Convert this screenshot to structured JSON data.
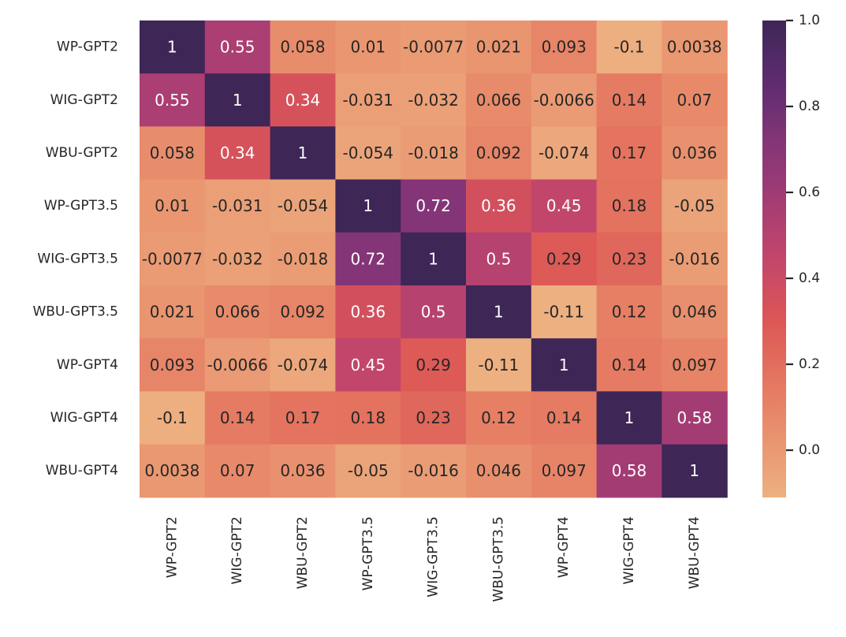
{
  "chart_data": {
    "type": "heatmap",
    "title": "",
    "row_labels": [
      "WP-GPT2",
      "WIG-GPT2",
      "WBU-GPT2",
      "WP-GPT3.5",
      "WIG-GPT3.5",
      "WBU-GPT3.5",
      "WP-GPT4",
      "WIG-GPT4",
      "WBU-GPT4"
    ],
    "col_labels": [
      "WP-GPT2",
      "WIG-GPT2",
      "WBU-GPT2",
      "WP-GPT3.5",
      "WIG-GPT3.5",
      "WBU-GPT3.5",
      "WP-GPT4",
      "WIG-GPT4",
      "WBU-GPT4"
    ],
    "values": [
      [
        1,
        0.55,
        0.058,
        0.01,
        -0.0077,
        0.021,
        0.093,
        -0.1,
        0.0038
      ],
      [
        0.55,
        1,
        0.34,
        -0.031,
        -0.032,
        0.066,
        -0.0066,
        0.14,
        0.07
      ],
      [
        0.058,
        0.34,
        1,
        -0.054,
        -0.018,
        0.092,
        -0.074,
        0.17,
        0.036
      ],
      [
        0.01,
        -0.031,
        -0.054,
        1,
        0.72,
        0.36,
        0.45,
        0.18,
        -0.05
      ],
      [
        -0.0077,
        -0.032,
        -0.018,
        0.72,
        1,
        0.5,
        0.29,
        0.23,
        -0.016
      ],
      [
        0.021,
        0.066,
        0.092,
        0.36,
        0.5,
        1,
        -0.11,
        0.12,
        0.046
      ],
      [
        0.093,
        -0.0066,
        -0.074,
        0.45,
        0.29,
        -0.11,
        1,
        0.14,
        0.097
      ],
      [
        -0.1,
        0.14,
        0.17,
        0.18,
        0.23,
        0.12,
        0.14,
        1,
        0.58
      ],
      [
        0.0038,
        0.07,
        0.036,
        -0.05,
        -0.016,
        0.046,
        0.097,
        0.58,
        1
      ]
    ],
    "labels": [
      [
        "1",
        "0.55",
        "0.058",
        "0.01",
        "-0.0077",
        "0.021",
        "0.093",
        "-0.1",
        "0.0038"
      ],
      [
        "0.55",
        "1",
        "0.34",
        "-0.031",
        "-0.032",
        "0.066",
        "-0.0066",
        "0.14",
        "0.07"
      ],
      [
        "0.058",
        "0.34",
        "1",
        "-0.054",
        "-0.018",
        "0.092",
        "-0.074",
        "0.17",
        "0.036"
      ],
      [
        "0.01",
        "-0.031",
        "-0.054",
        "1",
        "0.72",
        "0.36",
        "0.45",
        "0.18",
        "-0.05"
      ],
      [
        "-0.0077",
        "-0.032",
        "-0.018",
        "0.72",
        "1",
        "0.5",
        "0.29",
        "0.23",
        "-0.016"
      ],
      [
        "0.021",
        "0.066",
        "0.092",
        "0.36",
        "0.5",
        "1",
        "-0.11",
        "0.12",
        "0.046"
      ],
      [
        "0.093",
        "-0.0066",
        "-0.074",
        "0.45",
        "0.29",
        "-0.11",
        "1",
        "0.14",
        "0.097"
      ],
      [
        "-0.1",
        "0.14",
        "0.17",
        "0.18",
        "0.23",
        "0.12",
        "0.14",
        "1",
        "0.58"
      ],
      [
        "0.0038",
        "0.07",
        "0.036",
        "-0.05",
        "-0.016",
        "0.046",
        "0.097",
        "0.58",
        "1"
      ]
    ],
    "colorbar": {
      "vmin": -0.11,
      "vmax": 1.0,
      "ticks": [
        0.0,
        0.2,
        0.4,
        0.6,
        0.8,
        1.0
      ],
      "tick_labels": [
        "0.0",
        "0.2",
        "0.4",
        "0.6",
        "0.8",
        "1.0"
      ],
      "colormap": "flare",
      "colormap_stops": [
        "#edb081",
        "#e9936f",
        "#e4755f",
        "#dc5656",
        "#c3466b",
        "#a33c74",
        "#823577",
        "#5d2c6f",
        "#3e2656"
      ]
    },
    "annotation_colors": {
      "dark_text": "#262626",
      "light_text": "#ffffff"
    }
  }
}
